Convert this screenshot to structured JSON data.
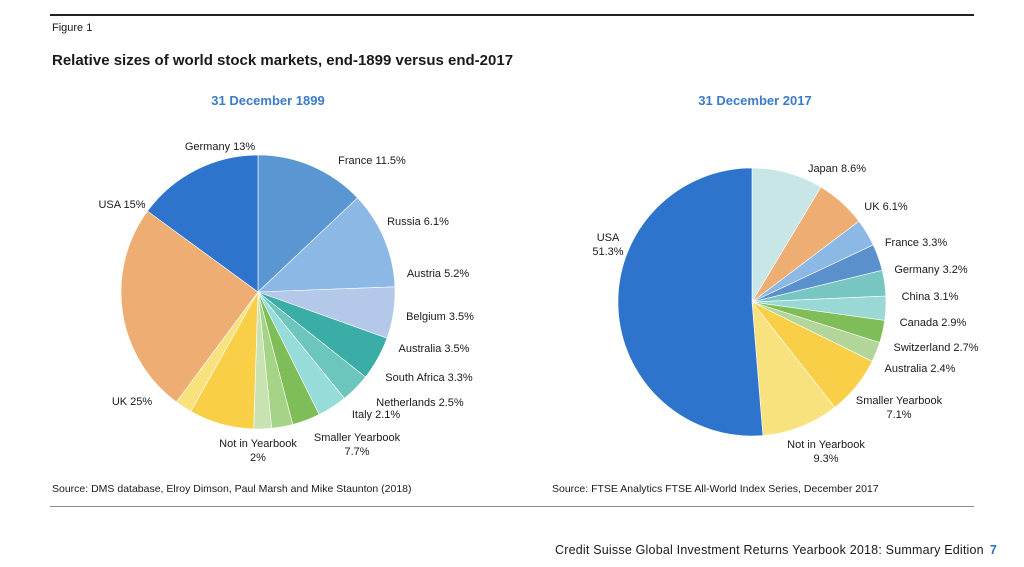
{
  "figure_label": "Figure 1",
  "main_title": "Relative sizes of world stock markets, end-1899 versus end-2017",
  "footer": {
    "text": "Credit Suisse Global Investment Returns Yearbook 2018: Summary Edition",
    "page": "7"
  },
  "chart_data": [
    {
      "type": "pie",
      "title": "31 December 1899",
      "source": "Source:  DMS database, Elroy Dimson, Paul Marsh and Mike Staunton (2018)",
      "slices": [
        {
          "name": "Germany",
          "value": 13,
          "label": [
            "Germany 13%"
          ],
          "color": "#5a96d2"
        },
        {
          "name": "France",
          "value": 11.5,
          "label": [
            "France 11.5%"
          ],
          "color": "#8cb8e6"
        },
        {
          "name": "Russia",
          "value": 6.1,
          "label": [
            "Russia 6.1%"
          ],
          "color": "#b4c8ea"
        },
        {
          "name": "Austria",
          "value": 5.2,
          "label": [
            "Austria 5.2%"
          ],
          "color": "#3aaea6"
        },
        {
          "name": "Belgium",
          "value": 3.5,
          "label": [
            "Belgium 3.5%"
          ],
          "color": "#6cc6be"
        },
        {
          "name": "Australia",
          "value": 3.5,
          "label": [
            "Australia 3.5%"
          ],
          "color": "#96dcd8"
        },
        {
          "name": "South Africa",
          "value": 3.3,
          "label": [
            "South Africa 3.3%"
          ],
          "color": "#7ebd58"
        },
        {
          "name": "Netherlands",
          "value": 2.5,
          "label": [
            "Netherlands 2.5%"
          ],
          "color": "#a6d486"
        },
        {
          "name": "Italy",
          "value": 2.1,
          "label": [
            "Italy 2.1%"
          ],
          "color": "#c8e2b2"
        },
        {
          "name": "Smaller Yearbook",
          "value": 7.7,
          "label": [
            "Smaller Yearbook",
            "7.7%"
          ],
          "color": "#f8cf46"
        },
        {
          "name": "Not in Yearbook",
          "value": 2,
          "label": [
            "Not in Yearbook",
            "2%"
          ],
          "color": "#f8e27e"
        },
        {
          "name": "UK",
          "value": 25,
          "label": [
            "UK 25%"
          ],
          "color": "#eead72"
        },
        {
          "name": "USA",
          "value": 15,
          "label": [
            "USA 15%"
          ],
          "color": "#2f74cc"
        }
      ]
    },
    {
      "type": "pie",
      "title": "31 December 2017",
      "source": "Source: FTSE Analytics FTSE All-World Index Series, December 2017",
      "slices": [
        {
          "name": "Japan",
          "value": 8.6,
          "label": [
            "Japan  8.6%"
          ],
          "color": "#c8e6e6"
        },
        {
          "name": "UK",
          "value": 6.1,
          "label": [
            "UK 6.1%"
          ],
          "color": "#eead72"
        },
        {
          "name": "France",
          "value": 3.3,
          "label": [
            "France  3.3%"
          ],
          "color": "#8cb8e6"
        },
        {
          "name": "Germany",
          "value": 3.2,
          "label": [
            "Germany  3.2%"
          ],
          "color": "#5a90cc"
        },
        {
          "name": "China",
          "value": 3.1,
          "label": [
            "China  3.1%"
          ],
          "color": "#78c6c2"
        },
        {
          "name": "Canada",
          "value": 2.9,
          "label": [
            "Canada  2.9%"
          ],
          "color": "#9ad8d6"
        },
        {
          "name": "Switzerland",
          "value": 2.7,
          "label": [
            "Switzerland  2.7%"
          ],
          "color": "#7ebd58"
        },
        {
          "name": "Australia",
          "value": 2.4,
          "label": [
            "Australia  2.4%"
          ],
          "color": "#b2d69a"
        },
        {
          "name": "Smaller Yearbook",
          "value": 7.1,
          "label": [
            "Smaller  Yearbook",
            "7.1%"
          ],
          "color": "#f8cf46"
        },
        {
          "name": "Not in Yearbook",
          "value": 9.3,
          "label": [
            "Not in Yearbook",
            "9.3%"
          ],
          "color": "#f8e27e"
        },
        {
          "name": "USA",
          "value": 51.3,
          "label": [
            "USA",
            "51.3%"
          ],
          "color": "#2f74cc"
        }
      ]
    }
  ]
}
